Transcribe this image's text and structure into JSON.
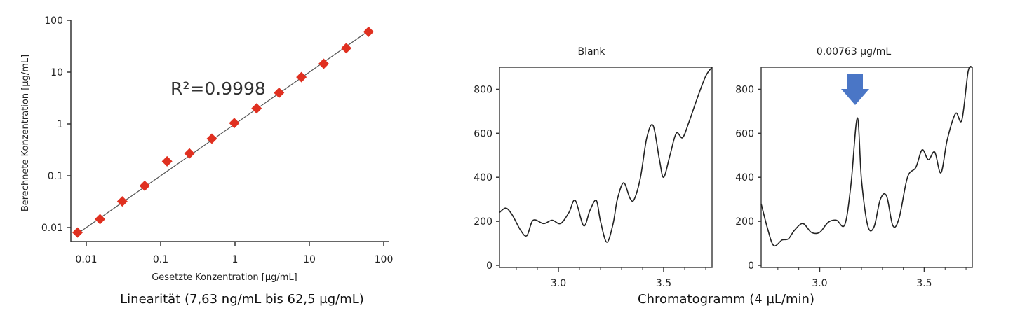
{
  "chart_data": [
    {
      "type": "scatter",
      "scale": "log-log",
      "xlabel": "Gesetzte Konzentration [µg/mL]",
      "ylabel": "Berechnete Konzentration [µg/mL]",
      "x_ticks": [
        "0.01",
        "0.1",
        "1",
        "10",
        "100"
      ],
      "y_ticks": [
        "0.01",
        "0.1",
        "1",
        "10",
        "100"
      ],
      "xlim": [
        0.005,
        120
      ],
      "ylim": [
        0.006,
        100
      ],
      "annotation": "R²=0.9998",
      "caption": "Linearität (7,63 ng/mL bis 62,5 µg/mL)",
      "marker_color": "#e03020",
      "points": [
        {
          "x": 0.00763,
          "y": 0.008
        },
        {
          "x": 0.0153,
          "y": 0.0145
        },
        {
          "x": 0.0305,
          "y": 0.032
        },
        {
          "x": 0.061,
          "y": 0.064
        },
        {
          "x": 0.122,
          "y": 0.19
        },
        {
          "x": 0.244,
          "y": 0.27
        },
        {
          "x": 0.488,
          "y": 0.52
        },
        {
          "x": 0.977,
          "y": 1.04
        },
        {
          "x": 1.95,
          "y": 2.0
        },
        {
          "x": 3.91,
          "y": 4.0
        },
        {
          "x": 7.81,
          "y": 8.0
        },
        {
          "x": 15.6,
          "y": 14.5
        },
        {
          "x": 31.3,
          "y": 29.0
        },
        {
          "x": 62.5,
          "y": 60.0
        }
      ],
      "fit_line": {
        "x": [
          0.00763,
          62.5
        ],
        "y": [
          0.00763,
          62.5
        ]
      }
    },
    {
      "type": "line",
      "title": "Blank",
      "xlim": [
        2.72,
        3.73
      ],
      "ylim": [
        0,
        900
      ],
      "x_ticks": [
        3.0,
        3.5
      ],
      "y_ticks": [
        0,
        200,
        400,
        600,
        800
      ],
      "series": [
        {
          "x": [
            2.72,
            2.75,
            2.78,
            2.82,
            2.85,
            2.88,
            2.93,
            2.97,
            3.01,
            3.05,
            3.08,
            3.12,
            3.15,
            3.18,
            3.2,
            3.23,
            3.26,
            3.28,
            3.31,
            3.34,
            3.36,
            3.39,
            3.42,
            3.45,
            3.48,
            3.5,
            3.53,
            3.56,
            3.59,
            3.62,
            3.66,
            3.7,
            3.73
          ],
          "y": [
            240,
            260,
            230,
            160,
            135,
            205,
            190,
            205,
            190,
            240,
            295,
            180,
            250,
            295,
            200,
            105,
            190,
            300,
            375,
            305,
            300,
            400,
            580,
            635,
            480,
            400,
            500,
            600,
            580,
            650,
            760,
            860,
            900
          ]
        }
      ]
    },
    {
      "type": "line",
      "title": "0.00763 µg/mL",
      "xlim": [
        2.72,
        3.73
      ],
      "ylim": [
        0,
        900
      ],
      "x_ticks": [
        3.0,
        3.5
      ],
      "y_ticks": [
        0,
        200,
        400,
        600,
        800
      ],
      "annotation": "peak-arrow",
      "arrow_color": "#4a76c6",
      "series": [
        {
          "x": [
            2.72,
            2.75,
            2.78,
            2.82,
            2.85,
            2.88,
            2.92,
            2.96,
            3.0,
            3.04,
            3.08,
            3.12,
            3.15,
            3.18,
            3.2,
            3.23,
            3.26,
            3.29,
            3.32,
            3.35,
            3.38,
            3.42,
            3.46,
            3.49,
            3.52,
            3.55,
            3.58,
            3.61,
            3.65,
            3.68,
            3.71,
            3.73
          ],
          "y": [
            280,
            170,
            90,
            115,
            120,
            160,
            190,
            150,
            150,
            195,
            205,
            185,
            370,
            670,
            390,
            180,
            175,
            300,
            315,
            180,
            215,
            400,
            445,
            525,
            480,
            515,
            420,
            570,
            690,
            660,
            880,
            900
          ]
        }
      ],
      "caption": "Chromatogramm (4 µL/min)"
    }
  ]
}
